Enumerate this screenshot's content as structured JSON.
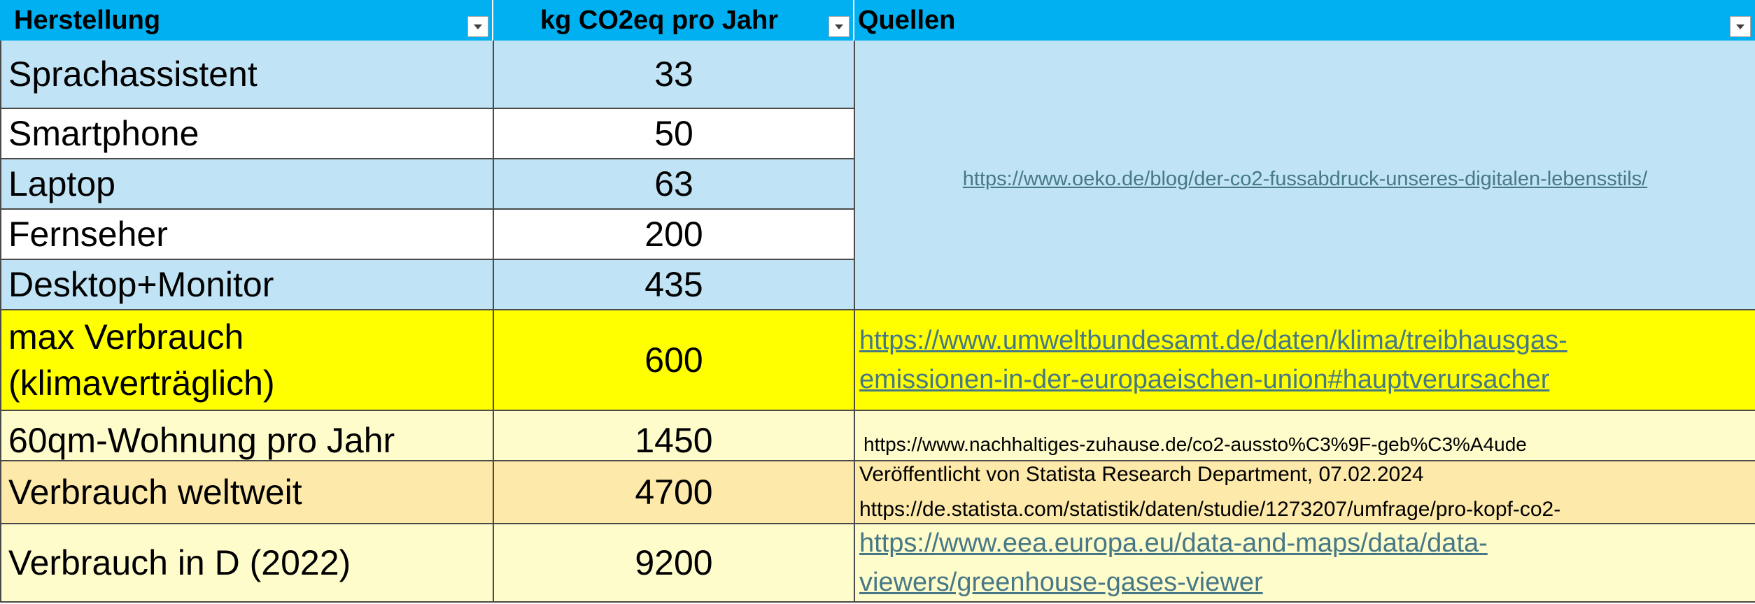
{
  "header": {
    "col1": "Herstellung",
    "col2": "kg CO2eq pro Jahr",
    "col3": "Quellen"
  },
  "rows": [
    {
      "name": "Sprachassistent",
      "value": "33"
    },
    {
      "name": "Smartphone",
      "value": "50"
    },
    {
      "name": "Laptop",
      "value": "63"
    },
    {
      "name": "Fernseher",
      "value": "200"
    },
    {
      "name": "Desktop+Monitor",
      "value": "435"
    },
    {
      "name_line1": "max Verbrauch",
      "name_line2": "(klimaverträglich)",
      "value": "600"
    },
    {
      "name": "60qm-Wohnung pro Jahr",
      "value": "1450"
    },
    {
      "name": "Verbrauch weltweit",
      "value": "4700"
    },
    {
      "name": "Verbrauch in D (2022)",
      "value": "9200"
    }
  ],
  "sources": {
    "oeko": "https://www.oeko.de/blog/der-co2-fussabdruck-unseres-digitalen-lebensstils/",
    "uba_line1": "https://www.umweltbundesamt.de/daten/klima/treibhausgas-",
    "uba_line2": "emissionen-in-der-europaeischen-union#hauptverursacher",
    "nachhaltig": "https://www.nachhaltiges-zuhause.de/co2-aussto%C3%9F-geb%C3%A4ude",
    "statista_line1": "Veröffentlicht von Statista Research Department, 07.02.2024",
    "statista_line2": "https://de.statista.com/statistik/daten/studie/1273207/umfrage/pro-kopf-co2-",
    "eea_line1": "https://www.eea.europa.eu/data-and-maps/data/data-",
    "eea_line2": "viewers/greenhouse-gases-viewer"
  },
  "colors": {
    "header": "#00b0f0",
    "band_blue": "#c0e4f5",
    "highlight_yellow": "#ffff00",
    "light_yellow": "#fffccc",
    "light_orange": "#fde9a9",
    "link": "#467886"
  }
}
